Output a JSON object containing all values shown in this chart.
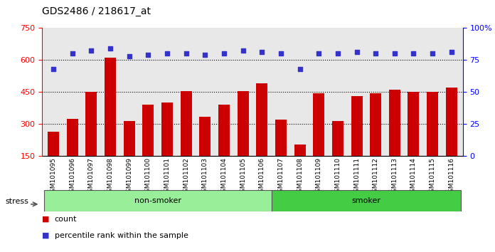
{
  "title": "GDS2486 / 218617_at",
  "categories": [
    "GSM101095",
    "GSM101096",
    "GSM101097",
    "GSM101098",
    "GSM101099",
    "GSM101100",
    "GSM101101",
    "GSM101102",
    "GSM101103",
    "GSM101104",
    "GSM101105",
    "GSM101106",
    "GSM101107",
    "GSM101108",
    "GSM101109",
    "GSM101110",
    "GSM101111",
    "GSM101112",
    "GSM101113",
    "GSM101114",
    "GSM101115",
    "GSM101116"
  ],
  "counts": [
    265,
    325,
    450,
    610,
    315,
    390,
    400,
    455,
    335,
    390,
    455,
    490,
    320,
    205,
    445,
    315,
    430,
    445,
    460,
    450,
    450,
    470
  ],
  "percentile_ranks": [
    68,
    80,
    82,
    84,
    78,
    79,
    80,
    80,
    79,
    80,
    82,
    81,
    80,
    68,
    80,
    80,
    81,
    80,
    80,
    80,
    80,
    81
  ],
  "non_smoker_count": 12,
  "bar_color": "#cc0000",
  "dot_color": "#3333cc",
  "non_smoker_color": "#99ee99",
  "smoker_color": "#44cc44",
  "ylim_left": [
    150,
    750
  ],
  "ylim_right": [
    0,
    100
  ],
  "yticks_left": [
    150,
    300,
    450,
    600,
    750
  ],
  "yticks_right": [
    0,
    25,
    50,
    75,
    100
  ],
  "grid_values": [
    300,
    450,
    600
  ],
  "background_color": "#e8e8e8",
  "legend_count_label": "count",
  "legend_pct_label": "percentile rank within the sample",
  "stress_label": "stress",
  "non_smoker_label": "non-smoker",
  "smoker_label": "smoker"
}
